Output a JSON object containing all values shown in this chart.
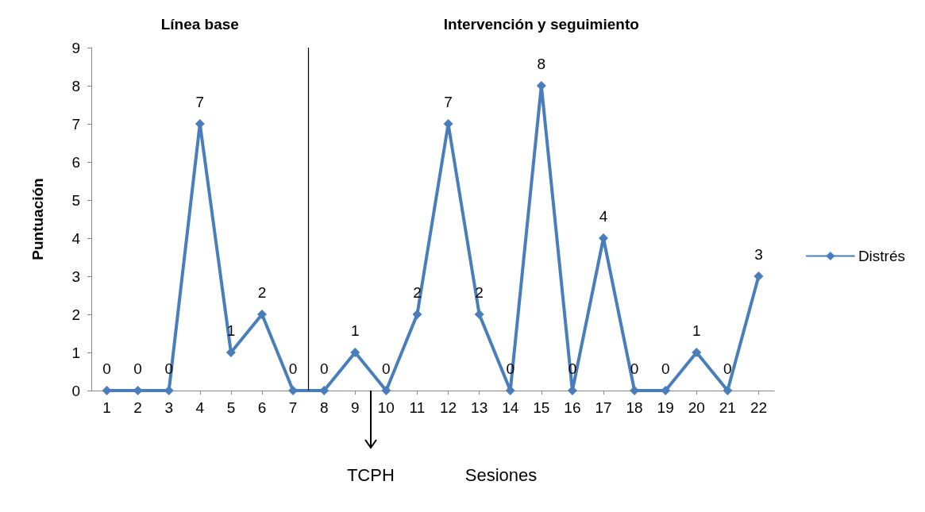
{
  "chart_data": {
    "type": "line",
    "x": [
      1,
      2,
      3,
      4,
      5,
      6,
      7,
      8,
      9,
      10,
      11,
      12,
      13,
      14,
      15,
      16,
      17,
      18,
      19,
      20,
      21,
      22
    ],
    "series": [
      {
        "name": "Distrés",
        "color": "#4a7ebb",
        "values": [
          0,
          0,
          0,
          7,
          1,
          2,
          0,
          0,
          1,
          0,
          2,
          7,
          2,
          0,
          8,
          0,
          4,
          0,
          0,
          1,
          0,
          3
        ]
      }
    ],
    "xlim": [
      0.5,
      22.5
    ],
    "xticks": [
      1,
      2,
      3,
      4,
      5,
      6,
      7,
      8,
      9,
      10,
      11,
      12,
      13,
      14,
      15,
      16,
      17,
      18,
      19,
      20,
      21,
      22
    ],
    "ylim": [
      0,
      9
    ],
    "yticks": [
      0,
      1,
      2,
      3,
      4,
      5,
      6,
      7,
      8,
      9
    ],
    "xlabel": "Sesiones",
    "ylabel": "Puntuación",
    "ref_lines": [
      {
        "axis": "x",
        "value": 7.5,
        "color": "#000000"
      }
    ],
    "annotations": [
      "Línea base",
      "Intervención y seguimiento",
      "TCPH"
    ],
    "data_labels": true,
    "marker": "diamond",
    "line_style": "solid",
    "grid": false,
    "legend": "right"
  }
}
